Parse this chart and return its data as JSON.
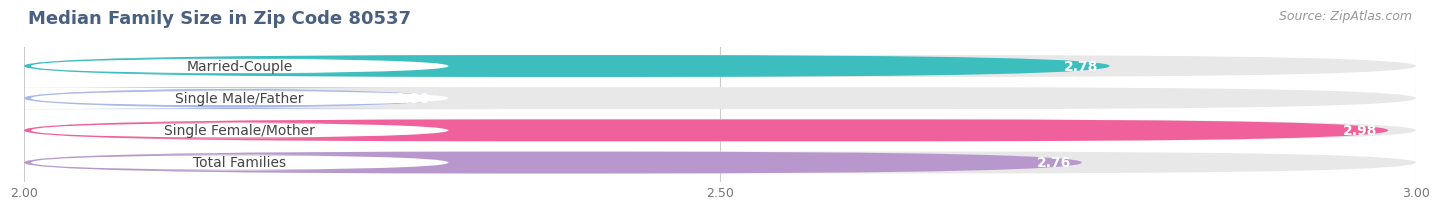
{
  "title": "Median Family Size in Zip Code 80537",
  "source": "Source: ZipAtlas.com",
  "categories": [
    "Married-Couple",
    "Single Male/Father",
    "Single Female/Mother",
    "Total Families"
  ],
  "values": [
    2.78,
    2.3,
    2.98,
    2.76
  ],
  "bar_colors": [
    "#3dbebe",
    "#a8b8e8",
    "#f0609a",
    "#b898cc"
  ],
  "bar_bg_color": "#e8e8e8",
  "xlim_min": 2.0,
  "xlim_max": 3.0,
  "xticks": [
    2.0,
    2.5,
    3.0
  ],
  "xtick_labels": [
    "2.00",
    "2.50",
    "3.00"
  ],
  "title_color": "#4a6080",
  "label_color": "#444444",
  "value_color": "#ffffff",
  "source_color": "#999999",
  "value_fontsize": 10,
  "label_fontsize": 10,
  "title_fontsize": 13,
  "source_fontsize": 9,
  "bar_height": 0.68
}
